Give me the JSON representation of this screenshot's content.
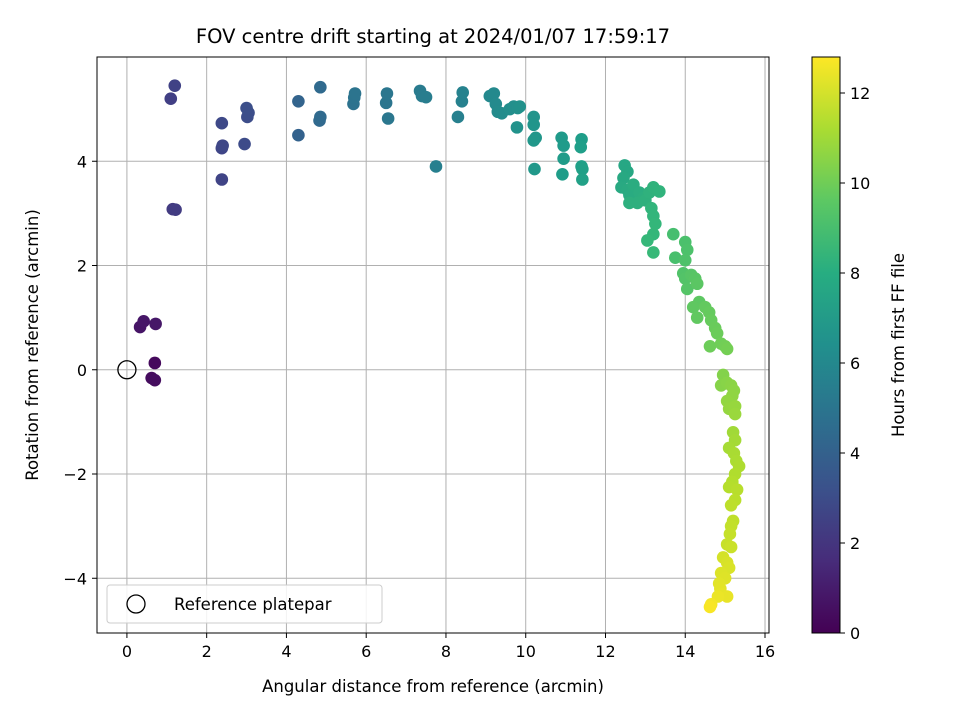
{
  "chart_data": {
    "type": "scatter",
    "title": "FOV centre drift starting at 2024/01/07 17:59:17",
    "xlabel": "Angular distance from reference (arcmin)",
    "ylabel": "Rotation from reference (arcmin)",
    "xlim": [
      -0.75,
      16.1
    ],
    "ylim": [
      -5.05,
      6.0
    ],
    "xticks": [
      0,
      2,
      4,
      6,
      8,
      10,
      12,
      14,
      16
    ],
    "yticks": [
      -4,
      -2,
      0,
      2,
      4
    ],
    "grid": true,
    "legend": {
      "placement": "lower-left",
      "entries": [
        "Reference platepar"
      ]
    },
    "reference_point": {
      "x": 0,
      "y": 0,
      "label": "Reference platepar"
    },
    "colorbar": {
      "label": "Hours from first FF file",
      "colormap": "viridis",
      "range": [
        0,
        12.8
      ],
      "ticks": [
        0,
        2,
        4,
        6,
        8,
        10,
        12
      ]
    },
    "points": [
      [
        0.7,
        0.13,
        0.3
      ],
      [
        0.62,
        -0.16,
        0.4
      ],
      [
        0.7,
        -0.2,
        0.45
      ],
      [
        0.33,
        0.82,
        0.7
      ],
      [
        0.42,
        0.93,
        0.75
      ],
      [
        0.72,
        0.88,
        0.8
      ],
      [
        1.15,
        3.08,
        2.2
      ],
      [
        1.22,
        3.07,
        2.25
      ],
      [
        1.1,
        5.2,
        2.4
      ],
      [
        1.2,
        5.45,
        2.5
      ],
      [
        2.38,
        3.65,
        2.6
      ],
      [
        2.38,
        4.25,
        2.65
      ],
      [
        2.4,
        4.3,
        2.7
      ],
      [
        2.38,
        4.73,
        2.8
      ],
      [
        2.95,
        4.33,
        2.9
      ],
      [
        3.02,
        4.85,
        3.0
      ],
      [
        3.05,
        4.93,
        3.05
      ],
      [
        3.0,
        5.02,
        3.1
      ],
      [
        4.3,
        4.5,
        4.0
      ],
      [
        4.3,
        5.15,
        4.1
      ],
      [
        4.83,
        4.78,
        4.3
      ],
      [
        4.85,
        4.85,
        4.35
      ],
      [
        4.85,
        5.42,
        4.4
      ],
      [
        5.68,
        5.1,
        4.8
      ],
      [
        5.7,
        5.22,
        4.85
      ],
      [
        5.72,
        5.3,
        4.9
      ],
      [
        6.5,
        5.12,
        5.0
      ],
      [
        6.52,
        5.3,
        5.05
      ],
      [
        6.55,
        4.82,
        5.1
      ],
      [
        7.35,
        5.35,
        5.3
      ],
      [
        7.4,
        5.25,
        5.35
      ],
      [
        7.5,
        5.23,
        5.4
      ],
      [
        7.75,
        3.9,
        5.5
      ],
      [
        8.3,
        4.85,
        5.6
      ],
      [
        8.4,
        5.15,
        5.65
      ],
      [
        8.42,
        5.32,
        5.7
      ],
      [
        9.1,
        5.25,
        6.0
      ],
      [
        9.2,
        5.3,
        6.05
      ],
      [
        9.25,
        5.1,
        6.1
      ],
      [
        9.3,
        4.95,
        6.15
      ],
      [
        9.4,
        4.92,
        6.2
      ],
      [
        9.6,
        5.0,
        6.3
      ],
      [
        9.7,
        5.05,
        6.35
      ],
      [
        9.8,
        5.02,
        6.4
      ],
      [
        9.85,
        5.05,
        6.45
      ],
      [
        9.78,
        4.65,
        6.5
      ],
      [
        10.2,
        4.85,
        6.6
      ],
      [
        10.2,
        4.7,
        6.65
      ],
      [
        10.25,
        4.45,
        6.7
      ],
      [
        10.2,
        4.4,
        6.75
      ],
      [
        10.22,
        3.85,
        6.8
      ],
      [
        10.9,
        4.45,
        6.9
      ],
      [
        10.95,
        4.3,
        6.95
      ],
      [
        10.95,
        4.05,
        7.0
      ],
      [
        10.92,
        3.75,
        7.05
      ],
      [
        11.4,
        4.42,
        7.1
      ],
      [
        11.38,
        4.27,
        7.15
      ],
      [
        11.4,
        3.9,
        7.2
      ],
      [
        11.42,
        3.85,
        7.25
      ],
      [
        11.42,
        3.65,
        7.3
      ],
      [
        12.48,
        3.92,
        7.6
      ],
      [
        12.55,
        3.8,
        7.65
      ],
      [
        12.45,
        3.68,
        7.7
      ],
      [
        12.4,
        3.5,
        7.75
      ],
      [
        12.55,
        3.45,
        7.8
      ],
      [
        12.6,
        3.35,
        7.85
      ],
      [
        12.7,
        3.55,
        7.9
      ],
      [
        12.85,
        3.4,
        7.95
      ],
      [
        12.95,
        3.3,
        8.0
      ],
      [
        12.6,
        3.2,
        8.05
      ],
      [
        12.8,
        3.2,
        8.1
      ],
      [
        13.0,
        3.25,
        8.15
      ],
      [
        13.1,
        3.4,
        8.2
      ],
      [
        13.2,
        3.5,
        8.25
      ],
      [
        13.35,
        3.42,
        8.3
      ],
      [
        13.15,
        3.1,
        8.35
      ],
      [
        13.2,
        2.95,
        8.4
      ],
      [
        13.25,
        2.8,
        8.45
      ],
      [
        13.2,
        2.6,
        8.5
      ],
      [
        13.05,
        2.48,
        8.55
      ],
      [
        13.2,
        2.25,
        8.6
      ],
      [
        13.7,
        2.6,
        9.0
      ],
      [
        13.75,
        2.15,
        9.05
      ],
      [
        14.0,
        2.45,
        9.1
      ],
      [
        14.05,
        2.3,
        9.15
      ],
      [
        14.0,
        2.1,
        9.2
      ],
      [
        13.95,
        1.85,
        9.25
      ],
      [
        14.0,
        1.75,
        9.3
      ],
      [
        14.05,
        1.55,
        9.35
      ],
      [
        14.15,
        1.82,
        9.4
      ],
      [
        14.25,
        1.75,
        9.45
      ],
      [
        14.3,
        1.65,
        9.5
      ],
      [
        14.35,
        1.3,
        9.55
      ],
      [
        14.2,
        1.2,
        9.6
      ],
      [
        14.3,
        1.0,
        9.65
      ],
      [
        14.5,
        1.2,
        9.7
      ],
      [
        14.6,
        1.1,
        9.75
      ],
      [
        14.65,
        0.95,
        9.8
      ],
      [
        14.75,
        0.8,
        9.85
      ],
      [
        14.8,
        0.7,
        9.9
      ],
      [
        14.62,
        0.45,
        9.95
      ],
      [
        14.9,
        0.5,
        10.0
      ],
      [
        15.0,
        0.45,
        10.05
      ],
      [
        15.05,
        0.4,
        10.1
      ],
      [
        14.95,
        -0.1,
        10.4
      ],
      [
        14.9,
        -0.3,
        10.45
      ],
      [
        15.05,
        -0.25,
        10.5
      ],
      [
        15.15,
        -0.3,
        10.55
      ],
      [
        15.22,
        -0.4,
        10.6
      ],
      [
        15.18,
        -0.5,
        10.65
      ],
      [
        15.05,
        -0.6,
        10.7
      ],
      [
        15.1,
        -0.75,
        10.75
      ],
      [
        15.25,
        -0.7,
        10.8
      ],
      [
        15.25,
        -0.85,
        10.85
      ],
      [
        15.2,
        -1.2,
        11.0
      ],
      [
        15.25,
        -1.35,
        11.05
      ],
      [
        15.1,
        -1.5,
        11.1
      ],
      [
        15.22,
        -1.6,
        11.15
      ],
      [
        15.28,
        -1.75,
        11.2
      ],
      [
        15.35,
        -1.85,
        11.25
      ],
      [
        15.25,
        -2.0,
        11.3
      ],
      [
        15.18,
        -2.15,
        11.35
      ],
      [
        15.1,
        -2.25,
        11.4
      ],
      [
        15.3,
        -2.3,
        11.45
      ],
      [
        15.25,
        -2.5,
        11.5
      ],
      [
        15.15,
        -2.6,
        11.55
      ],
      [
        15.2,
        -2.9,
        11.6
      ],
      [
        15.15,
        -3.0,
        11.65
      ],
      [
        15.12,
        -3.15,
        11.7
      ],
      [
        15.05,
        -3.35,
        11.75
      ],
      [
        15.15,
        -3.4,
        11.8
      ],
      [
        14.95,
        -3.6,
        12.0
      ],
      [
        15.05,
        -3.7,
        12.05
      ],
      [
        15.1,
        -3.8,
        12.1
      ],
      [
        14.9,
        -3.9,
        12.15
      ],
      [
        15.0,
        -4.0,
        12.2
      ],
      [
        14.85,
        -4.1,
        12.25
      ],
      [
        14.88,
        -4.2,
        12.3
      ],
      [
        14.9,
        -4.3,
        12.35
      ],
      [
        15.05,
        -4.35,
        12.4
      ],
      [
        14.82,
        -4.35,
        12.45
      ],
      [
        14.65,
        -4.5,
        12.6
      ],
      [
        14.62,
        -4.55,
        12.7
      ]
    ]
  }
}
